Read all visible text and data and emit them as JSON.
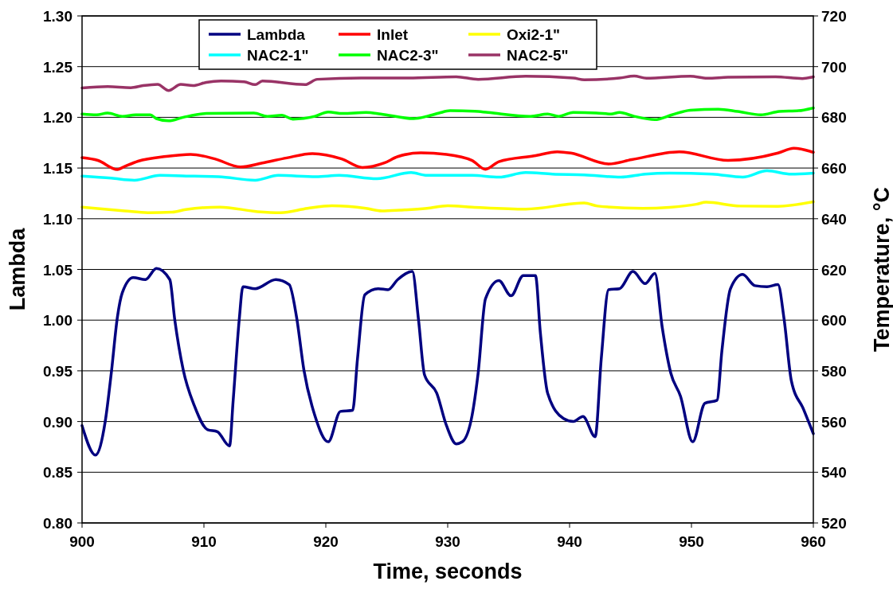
{
  "chart_data": {
    "type": "line",
    "xlabel": "Time, seconds",
    "ylabel": "Lambda",
    "y2label": "Temperature, °C",
    "xlim": [
      900,
      960
    ],
    "xticks": [
      900,
      910,
      920,
      930,
      940,
      950,
      960
    ],
    "ylim": [
      0.8,
      1.3
    ],
    "yticks": [
      {
        "value": 0.8,
        "label": "0.80"
      },
      {
        "value": 0.85,
        "label": "0.85"
      },
      {
        "value": 0.9,
        "label": "0.90"
      },
      {
        "value": 0.95,
        "label": "0.95"
      },
      {
        "value": 1.0,
        "label": "1.00"
      },
      {
        "value": 1.05,
        "label": "1.05"
      },
      {
        "value": 1.1,
        "label": "1.10"
      },
      {
        "value": 1.15,
        "label": "1.15"
      },
      {
        "value": 1.2,
        "label": "1.20"
      },
      {
        "value": 1.25,
        "label": "1.25"
      },
      {
        "value": 1.3,
        "label": "1.30"
      }
    ],
    "y2lim": [
      520,
      720
    ],
    "y2ticks": [
      520,
      540,
      560,
      580,
      600,
      620,
      640,
      660,
      680,
      700,
      720
    ],
    "grid": "y",
    "legend": "top",
    "marker": "none",
    "line_style": "solid",
    "series": [
      {
        "name": "Lambda",
        "color": "#000080",
        "x": [
          900,
          901.1,
          901.9,
          902.4,
          902.9,
          903.3,
          904.2,
          905.2,
          906.1,
          907.2,
          907.6,
          908.3,
          909.2,
          910.3,
          911.1,
          912.1,
          912.4,
          912.9,
          913.2,
          914.2,
          915.9,
          917.0,
          917.6,
          918.2,
          919.1,
          920.2,
          921.2,
          922.2,
          922.6,
          923.2,
          924.3,
          925.1,
          925.9,
          927.1,
          927.6,
          928.1,
          929.1,
          929.9,
          930.7,
          931.2,
          932.0,
          932.5,
          933.1,
          934.2,
          935.2,
          936.2,
          937.2,
          937.6,
          938.2,
          939.5,
          940.3,
          941.1,
          942.1,
          942.6,
          943.2,
          944.1,
          945.2,
          946.2,
          947.0,
          947.6,
          948.3,
          949.1,
          950.1,
          951.1,
          952.1,
          952.5,
          953.2,
          954.2,
          955.2,
          956.2,
          957.1,
          957.6,
          958.2,
          959.2,
          960
        ],
        "values": [
          0.896,
          0.867,
          0.9,
          0.948,
          1.003,
          1.027,
          1.042,
          1.04,
          1.051,
          1.04,
          1.001,
          0.951,
          0.916,
          0.892,
          0.89,
          0.876,
          0.921,
          1.001,
          1.033,
          1.031,
          1.04,
          1.035,
          1.003,
          0.951,
          0.906,
          0.88,
          0.91,
          0.911,
          0.962,
          1.025,
          1.031,
          1.03,
          1.04,
          1.048,
          1.001,
          0.946,
          0.928,
          0.896,
          0.878,
          0.88,
          0.906,
          0.948,
          1.021,
          1.039,
          1.024,
          1.044,
          1.044,
          0.988,
          0.928,
          0.903,
          0.9,
          0.905,
          0.885,
          0.962,
          1.03,
          1.031,
          1.048,
          1.036,
          1.046,
          0.993,
          0.948,
          0.925,
          0.88,
          0.918,
          0.921,
          0.97,
          1.031,
          1.045,
          1.034,
          1.033,
          1.035,
          1.001,
          0.94,
          0.912,
          0.888
        ]
      },
      {
        "name": "Inlet",
        "color": "#ff0000",
        "axis": "y2",
        "x": [
          900,
          901.3,
          902.9,
          903.4,
          904.6,
          906.9,
          908.9,
          910.9,
          913,
          914.8,
          916.8,
          918.9,
          921.3,
          923,
          924.8,
          925.9,
          927.8,
          929.9,
          932,
          933.1,
          934.2,
          937.1,
          939,
          940.1,
          943.2,
          945.1,
          949,
          953,
          957.1,
          958.4,
          960
        ],
        "values": [
          664.1,
          663,
          659.4,
          660.4,
          662.7,
          664.6,
          665.4,
          663.6,
          660.4,
          662,
          664,
          665.7,
          663.6,
          660.2,
          662,
          664.5,
          666,
          665.4,
          663,
          659.5,
          662.5,
          664.8,
          666.4,
          665.9,
          661.6,
          663.3,
          666.4,
          663,
          665.9,
          667.8,
          666.2
        ]
      },
      {
        "name": "Oxi2-1\"",
        "color": "#ffff00",
        "axis": "y2",
        "x": [
          900,
          903.5,
          905.4,
          907.4,
          908.5,
          911.3,
          914.4,
          916.3,
          918.5,
          920.5,
          923.3,
          924.6,
          926.1,
          928.3,
          930,
          932,
          936.4,
          941.2,
          942.3,
          946,
          948.2,
          950.4,
          951.2,
          954,
          957.1,
          960
        ],
        "values": [
          644.6,
          643.1,
          642.4,
          642.6,
          643.6,
          644.6,
          642.8,
          642.4,
          644.1,
          645.1,
          644.1,
          643.1,
          643.4,
          644.1,
          645.1,
          644.6,
          643.8,
          646.2,
          645,
          644.1,
          644.5,
          645.7,
          646.5,
          645,
          644.9,
          646.7
        ]
      },
      {
        "name": "NAC2-1\"",
        "color": "#00ffff",
        "axis": "y2",
        "x": [
          900,
          902.4,
          904.3,
          906.4,
          909.2,
          911.2,
          914.2,
          916.1,
          919.2,
          921.1,
          924.2,
          927,
          928.3,
          929.8,
          932,
          934.2,
          936.4,
          938.6,
          941.2,
          944.2,
          946.2,
          948.2,
          951.7,
          954.2,
          956.2,
          958.2,
          960
        ],
        "values": [
          656.8,
          656,
          655.2,
          657.1,
          656.8,
          656.6,
          655.2,
          657.1,
          656.6,
          657.1,
          655.8,
          658.2,
          657.1,
          657.1,
          657.1,
          656.4,
          658.2,
          657.6,
          657.3,
          656.4,
          657.6,
          658,
          657.6,
          656.4,
          658.9,
          657.6,
          658
        ]
      },
      {
        "name": "NAC2-3\"",
        "color": "#00ff00",
        "axis": "y2",
        "x": [
          900,
          901.2,
          902.1,
          903.3,
          904.4,
          905.6,
          906.1,
          907.1,
          908.3,
          910.2,
          914.1,
          915.2,
          916.4,
          917.3,
          919.1,
          920.2,
          921.4,
          923.3,
          924.5,
          927.2,
          928.3,
          929.3,
          930.2,
          932.2,
          933.3,
          936.8,
          938.2,
          939.1,
          940.3,
          942.2,
          943.4,
          944.1,
          945.3,
          947,
          948.4,
          949.9,
          952.2,
          953.8,
          955.7,
          957.2,
          958.8,
          960
        ],
        "values": [
          681.3,
          681,
          681.7,
          680.4,
          681,
          681,
          679.5,
          678.6,
          680,
          681.5,
          681.7,
          680.4,
          680.8,
          679.3,
          680.4,
          682.1,
          681.5,
          681.9,
          681.3,
          679.5,
          680.4,
          681.7,
          682.6,
          682.4,
          681.9,
          680.4,
          681.3,
          680.4,
          681.9,
          681.7,
          681.3,
          681.9,
          680.4,
          679.1,
          681,
          682.8,
          683.2,
          682.3,
          681,
          682.3,
          682.6,
          683.7
        ]
      },
      {
        "name": "NAC2-5\"",
        "color": "#993366",
        "axis": "y2",
        "x": [
          900,
          902.1,
          904,
          905,
          906.2,
          907.1,
          908.1,
          909.1,
          910.2,
          911.4,
          913.3,
          914.2,
          914.8,
          918.3,
          919.3,
          922.9,
          926.8,
          930.7,
          932.5,
          936.4,
          940.3,
          941.2,
          944.1,
          945.3,
          946.3,
          949.9,
          951.3,
          953,
          956.9,
          959.1,
          960
        ],
        "values": [
          691.6,
          692.1,
          691.7,
          692.5,
          693,
          690.6,
          693,
          692.5,
          693.8,
          694.3,
          694,
          692.9,
          694.3,
          692.9,
          695,
          695.5,
          695.5,
          696,
          695,
          696.2,
          695.5,
          694.8,
          695.5,
          696.3,
          695.4,
          696.2,
          695.4,
          695.8,
          696,
          695.3,
          696
        ]
      }
    ]
  }
}
